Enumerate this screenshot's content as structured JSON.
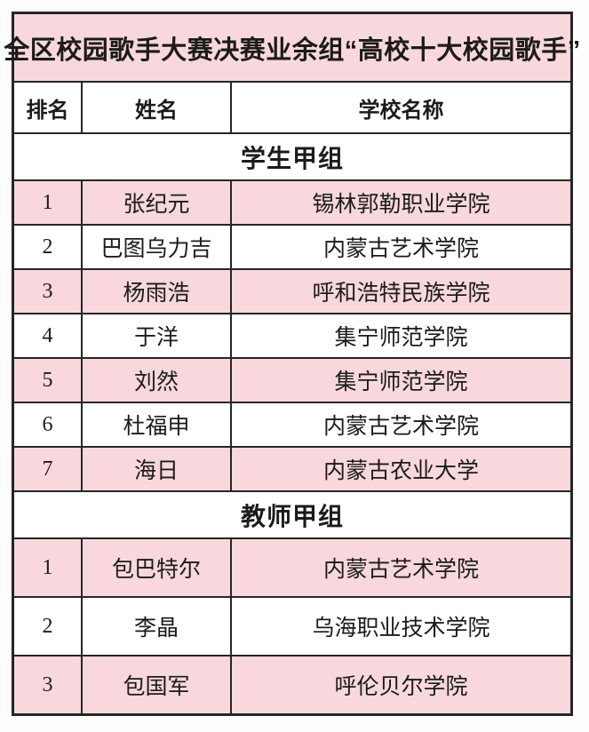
{
  "title": "全区校园歌手大赛决赛业余组“高校十大校园歌手”",
  "columns": {
    "rank": "排名",
    "name": "姓名",
    "school": "学校名称"
  },
  "sections": [
    {
      "name": "学生甲组",
      "rows": [
        {
          "rank": "1",
          "name": "张纪元",
          "school": "锡林郭勒职业学院"
        },
        {
          "rank": "2",
          "name": "巴图乌力吉",
          "school": "内蒙古艺术学院"
        },
        {
          "rank": "3",
          "name": "杨雨浩",
          "school": "呼和浩特民族学院"
        },
        {
          "rank": "4",
          "name": "于洋",
          "school": "集宁师范学院"
        },
        {
          "rank": "5",
          "name": "刘然",
          "school": "集宁师范学院"
        },
        {
          "rank": "6",
          "name": "杜福申",
          "school": "内蒙古艺术学院"
        },
        {
          "rank": "7",
          "name": "海日",
          "school": "内蒙古农业大学"
        }
      ]
    },
    {
      "name": "教师甲组",
      "rows": [
        {
          "rank": "1",
          "name": "包巴特尔",
          "school": "内蒙古艺术学院"
        },
        {
          "rank": "2",
          "name": "李晶",
          "school": "乌海职业技术学院"
        },
        {
          "rank": "3",
          "name": "包国军",
          "school": "呼伦贝尔学院"
        }
      ]
    }
  ],
  "colors": {
    "row_pink": "#f8d8dc",
    "title_pink": "#f9d8dd",
    "row_white": "#ffffff",
    "border": "#262626",
    "text": "#1b1b1b"
  }
}
